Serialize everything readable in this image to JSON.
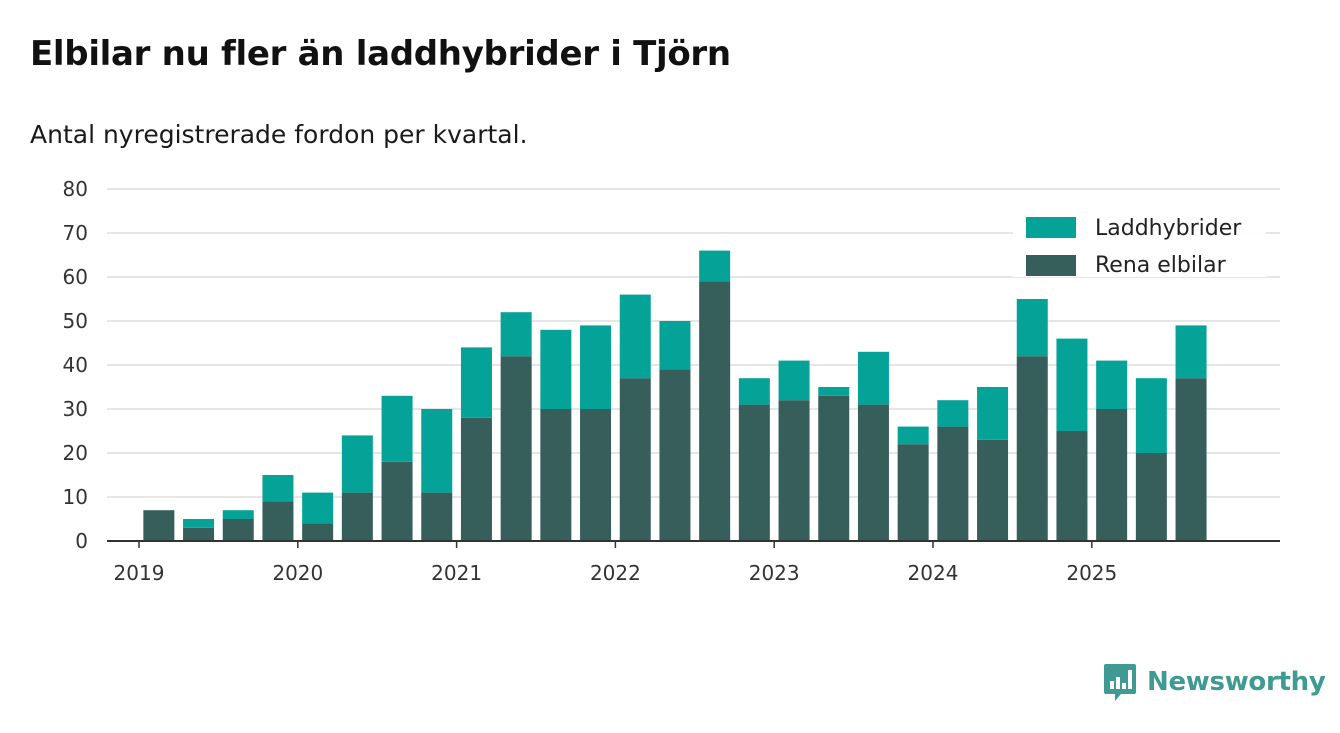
{
  "header": {
    "title": "Elbilar nu fler än laddhybrider i Tjörn",
    "subtitle": "Antal nyregistrerade fordon per kvartal."
  },
  "brand": {
    "name": "Newsworthy",
    "color": "#3e9a92",
    "icon": "newsworthy-logo-icon"
  },
  "colors": {
    "phev": "#05a298",
    "bev": "#365e5a",
    "grid": "#dddddd",
    "axis": "#333333"
  },
  "chart_data": {
    "type": "bar",
    "stacked": true,
    "title": "Elbilar nu fler än laddhybrider i Tjörn",
    "subtitle": "Antal nyregistrerade fordon per kvartal.",
    "xlabel": "",
    "ylabel": "",
    "ylim": [
      0,
      80
    ],
    "yticks": [
      0,
      10,
      20,
      30,
      40,
      50,
      60,
      70,
      80
    ],
    "xticks": [
      "2019",
      "2020",
      "2021",
      "2022",
      "2023",
      "2024",
      "2025"
    ],
    "grid": true,
    "legend_position": "top-right",
    "categories": [
      "2019 Q1",
      "2019 Q2",
      "2019 Q3",
      "2019 Q4",
      "2020 Q1",
      "2020 Q2",
      "2020 Q3",
      "2020 Q4",
      "2021 Q1",
      "2021 Q2",
      "2021 Q3",
      "2021 Q4",
      "2022 Q1",
      "2022 Q2",
      "2022 Q3",
      "2022 Q4",
      "2023 Q1",
      "2023 Q2",
      "2023 Q3",
      "2023 Q4",
      "2024 Q1",
      "2024 Q2",
      "2024 Q3",
      "2024 Q4",
      "2025 Q1",
      "2025 Q2",
      "2025 Q3",
      "2025 Q4"
    ],
    "series": [
      {
        "name": "Rena elbilar",
        "color": "#365e5a",
        "values": [
          null,
          7,
          3,
          5,
          9,
          4,
          11,
          18,
          11,
          28,
          42,
          30,
          30,
          37,
          39,
          59,
          31,
          32,
          33,
          31,
          22,
          26,
          23,
          42,
          25,
          30,
          20,
          37
        ]
      },
      {
        "name": "Laddhybrider",
        "color": "#05a298",
        "values": [
          null,
          0,
          2,
          2,
          6,
          7,
          13,
          15,
          19,
          16,
          10,
          18,
          19,
          19,
          11,
          7,
          6,
          9,
          2,
          12,
          4,
          6,
          12,
          13,
          21,
          11,
          17,
          12
        ]
      }
    ],
    "legend": [
      "Laddhybrider",
      "Rena elbilar"
    ]
  }
}
